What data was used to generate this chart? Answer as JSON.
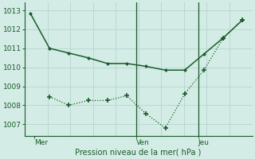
{
  "background_color": "#d4ece6",
  "grid_color": "#b8d8d0",
  "line_color": "#1a5c2a",
  "line1_x": [
    0,
    1,
    2,
    3,
    4,
    5,
    6,
    7,
    8,
    9,
    10,
    11
  ],
  "line1_y": [
    1012.85,
    1011.0,
    1010.75,
    1010.5,
    1010.2,
    1010.2,
    1010.05,
    1009.85,
    1009.85,
    1010.7,
    1011.55,
    1012.5
  ],
  "line2_x": [
    1,
    2,
    3,
    4,
    5,
    6,
    7,
    8,
    9,
    10,
    11
  ],
  "line2_y": [
    1008.45,
    1008.0,
    1008.25,
    1008.25,
    1008.5,
    1007.55,
    1006.8,
    1008.6,
    1009.85,
    1011.55,
    1012.5
  ],
  "vline1_x": 5.5,
  "vline2_x": 8.7,
  "xtick_positions": [
    0.2,
    5.5,
    8.7
  ],
  "xtick_labels": [
    "Mer",
    "Ven",
    "Jeu"
  ],
  "ytick_values": [
    1007,
    1008,
    1009,
    1010,
    1011,
    1012,
    1013
  ],
  "ylim": [
    1006.4,
    1013.4
  ],
  "xlim": [
    -0.3,
    11.5
  ],
  "xlabel": "Pression niveau de la mer( hPa )"
}
